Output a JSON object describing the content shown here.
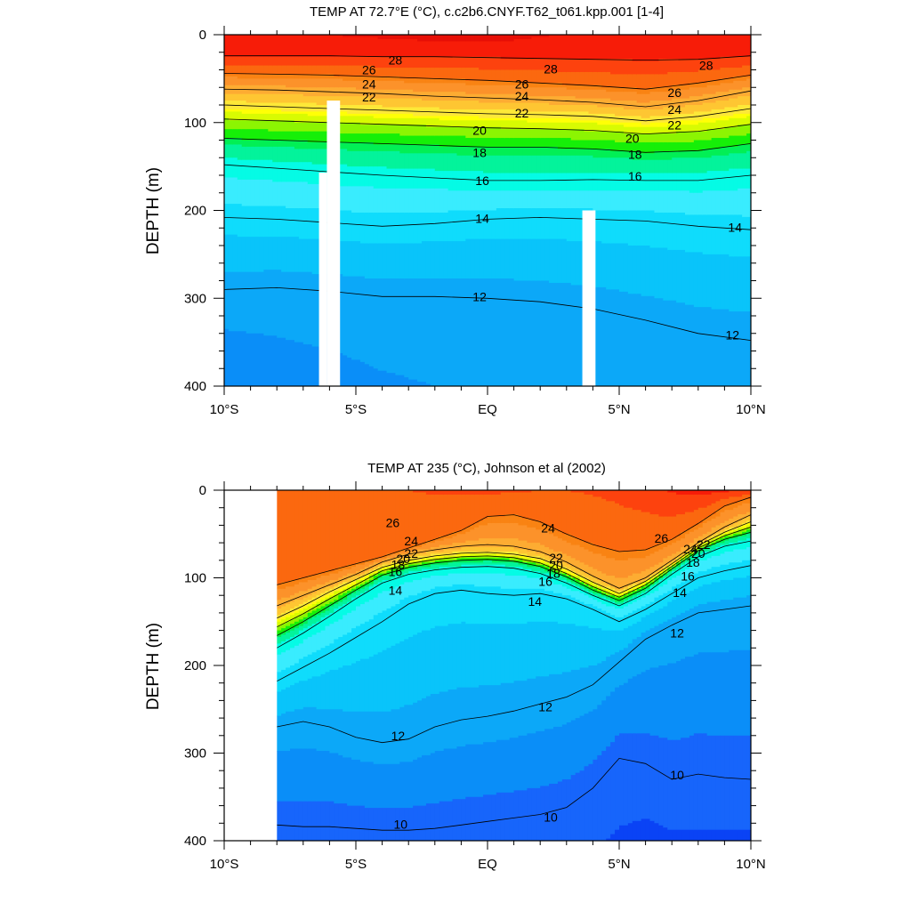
{
  "chart_data": [
    {
      "type": "contour",
      "title": "TEMP AT  72.7°E (°C), c.c2b6.CNYF.T62_t061.kpp.001 [1-4]",
      "ylabel": "DEPTH (m)",
      "xlabel": "",
      "x_ticks": [
        "10°S",
        "5°S",
        "EQ",
        "5°N",
        "10°N"
      ],
      "x_tick_values": [
        -10,
        -5,
        0,
        5,
        10
      ],
      "y_ticks": [
        "0",
        "100",
        "200",
        "300",
        "400"
      ],
      "y_tick_values": [
        0,
        100,
        200,
        300,
        400
      ],
      "xlim": [
        -10,
        10
      ],
      "ylim": [
        0,
        400
      ],
      "y_inverted": true,
      "contour_interval": 0.5,
      "x": [
        -10,
        -8,
        -6,
        -4,
        -2,
        0,
        2,
        4,
        6,
        8,
        10
      ],
      "surface_temp": [
        28.6,
        28.8,
        29.0,
        29.2,
        29.4,
        29.5,
        29.1,
        28.8,
        28.6,
        28.7,
        28.8
      ],
      "isotherms": [
        {
          "temp": 28,
          "depth": [
            24,
            24,
            24,
            25,
            25,
            26,
            27,
            28,
            29,
            28,
            24
          ]
        },
        {
          "temp": 26,
          "depth": [
            44,
            45,
            46,
            48,
            50,
            52,
            55,
            58,
            62,
            55,
            46
          ]
        },
        {
          "temp": 24,
          "depth": [
            62,
            63,
            65,
            67,
            70,
            72,
            74,
            77,
            82,
            75,
            64
          ]
        },
        {
          "temp": 22,
          "depth": [
            80,
            82,
            84,
            86,
            88,
            90,
            91,
            93,
            98,
            93,
            84
          ]
        },
        {
          "temp": 20,
          "depth": [
            96,
            98,
            100,
            102,
            104,
            106,
            107,
            109,
            113,
            110,
            102
          ]
        },
        {
          "temp": 18,
          "depth": [
            118,
            120,
            122,
            124,
            126,
            128,
            128,
            130,
            134,
            132,
            124
          ]
        },
        {
          "temp": 16,
          "depth": [
            148,
            152,
            156,
            160,
            163,
            166,
            166,
            165,
            166,
            166,
            160
          ]
        },
        {
          "temp": 14,
          "depth": [
            208,
            210,
            214,
            218,
            215,
            210,
            208,
            210,
            212,
            218,
            222
          ]
        },
        {
          "temp": 12,
          "depth": [
            290,
            288,
            292,
            298,
            298,
            300,
            304,
            312,
            325,
            340,
            348
          ]
        }
      ],
      "deep_temp_at_400": [
        10.8,
        11.0,
        11.2,
        11.4,
        11.5,
        11.5,
        11.5,
        11.5,
        11.6,
        11.7,
        11.8
      ],
      "no_data_columns": [
        {
          "x_min": -6.4,
          "x_max": -6.1,
          "top_depth": 157
        },
        {
          "x_min": -6.1,
          "x_max": -5.6,
          "top_depth": 75
        },
        {
          "x_min": 3.6,
          "x_max": 4.1,
          "top_depth": 200
        }
      ],
      "contour_labels": [
        {
          "text": "28",
          "x": -3.5,
          "depth": 29
        },
        {
          "text": "26",
          "x": -4.5,
          "depth": 40
        },
        {
          "text": "24",
          "x": -4.5,
          "depth": 56
        },
        {
          "text": "22",
          "x": -4.5,
          "depth": 71
        },
        {
          "text": "28",
          "x": 2.4,
          "depth": 39
        },
        {
          "text": "26",
          "x": 1.3,
          "depth": 56
        },
        {
          "text": "24",
          "x": 1.3,
          "depth": 70
        },
        {
          "text": "22",
          "x": 1.3,
          "depth": 89
        },
        {
          "text": "20",
          "x": -0.3,
          "depth": 109
        },
        {
          "text": "18",
          "x": -0.3,
          "depth": 134
        },
        {
          "text": "16",
          "x": -0.2,
          "depth": 166
        },
        {
          "text": "14",
          "x": -0.2,
          "depth": 209
        },
        {
          "text": "12",
          "x": -0.3,
          "depth": 298
        },
        {
          "text": "28",
          "x": 8.3,
          "depth": 35
        },
        {
          "text": "26",
          "x": 7.1,
          "depth": 66
        },
        {
          "text": "24",
          "x": 7.1,
          "depth": 85
        },
        {
          "text": "22",
          "x": 7.1,
          "depth": 103
        },
        {
          "text": "20",
          "x": 5.5,
          "depth": 118
        },
        {
          "text": "18",
          "x": 5.6,
          "depth": 136
        },
        {
          "text": "16",
          "x": 5.6,
          "depth": 161
        },
        {
          "text": "14",
          "x": 9.4,
          "depth": 219
        },
        {
          "text": "12",
          "x": 9.3,
          "depth": 342
        }
      ]
    },
    {
      "type": "contour",
      "title": "TEMP AT 235 (°C), Johnson et al (2002)",
      "ylabel": "DEPTH (m)",
      "xlabel": "",
      "x_ticks": [
        "10°S",
        "5°S",
        "EQ",
        "5°N",
        "10°N"
      ],
      "x_tick_values": [
        -10,
        -5,
        0,
        5,
        10
      ],
      "y_ticks": [
        "0",
        "100",
        "200",
        "300",
        "400"
      ],
      "y_tick_values": [
        0,
        100,
        200,
        300,
        400
      ],
      "xlim": [
        -10,
        10
      ],
      "ylim": [
        0,
        400
      ],
      "y_inverted": true,
      "data_xlim": [
        -8,
        10
      ],
      "contour_interval": 0.5,
      "x": [
        -8,
        -7,
        -6,
        -5,
        -4,
        -3,
        -2,
        -1,
        0,
        1,
        2,
        3,
        4,
        5,
        6,
        7,
        8,
        9,
        10
      ],
      "surface_temp": [
        26.6,
        26.7,
        26.8,
        26.9,
        27.0,
        27.0,
        27.1,
        27.1,
        27.2,
        27.1,
        27.0,
        27.0,
        27.1,
        27.3,
        27.6,
        28.1,
        28.4,
        28.2,
        28.0
      ],
      "isotherms": [
        {
          "temp": 26,
          "depth": [
            108,
            100,
            92,
            84,
            76,
            66,
            56,
            46,
            30,
            28,
            36,
            50,
            62,
            70,
            68,
            56,
            38,
            18,
            8
          ]
        },
        {
          "temp": 24,
          "depth": [
            132,
            120,
            108,
            96,
            82,
            73,
            68,
            64,
            62,
            64,
            70,
            82,
            98,
            112,
            100,
            80,
            60,
            42,
            28
          ]
        },
        {
          "temp": 22,
          "depth": [
            146,
            132,
            116,
            102,
            88,
            80,
            75,
            72,
            71,
            73,
            78,
            90,
            105,
            118,
            104,
            84,
            63,
            48,
            36
          ]
        },
        {
          "temp": 20,
          "depth": [
            156,
            141,
            124,
            108,
            92,
            84,
            79,
            76,
            75,
            77,
            83,
            95,
            110,
            122,
            108,
            87,
            66,
            52,
            42
          ]
        },
        {
          "temp": 18,
          "depth": [
            166,
            150,
            132,
            114,
            97,
            88,
            83,
            80,
            79,
            81,
            87,
            99,
            114,
            126,
            112,
            90,
            69,
            56,
            48
          ]
        },
        {
          "temp": 16,
          "depth": [
            180,
            163,
            144,
            124,
            106,
            96,
            91,
            88,
            87,
            89,
            95,
            106,
            120,
            132,
            118,
            96,
            76,
            64,
            58
          ]
        },
        {
          "temp": 14,
          "depth": [
            218,
            202,
            186,
            168,
            150,
            130,
            118,
            114,
            118,
            120,
            118,
            124,
            136,
            150,
            136,
            118,
            100,
            92,
            86
          ]
        },
        {
          "temp": 12,
          "depth": [
            270,
            264,
            270,
            282,
            288,
            284,
            270,
            262,
            258,
            252,
            244,
            236,
            222,
            196,
            170,
            154,
            140,
            136,
            132
          ]
        },
        {
          "temp": 10,
          "depth": [
            382,
            384,
            384,
            386,
            388,
            388,
            386,
            382,
            378,
            374,
            370,
            362,
            340,
            306,
            312,
            330,
            324,
            328,
            330
          ]
        }
      ],
      "deep_temp_at_400": [
        9.7,
        9.7,
        9.7,
        9.7,
        9.7,
        9.7,
        9.7,
        9.7,
        9.7,
        9.7,
        9.7,
        9.7,
        9.6,
        9.4,
        9.3,
        9.4,
        9.4,
        9.4,
        9.4
      ],
      "contour_labels": [
        {
          "text": "26",
          "x": -3.6,
          "depth": 37
        },
        {
          "text": "24",
          "x": -2.9,
          "depth": 58
        },
        {
          "text": "22",
          "x": -2.9,
          "depth": 72
        },
        {
          "text": "20",
          "x": -3.2,
          "depth": 78
        },
        {
          "text": "18",
          "x": -3.4,
          "depth": 85
        },
        {
          "text": "16",
          "x": -3.5,
          "depth": 93
        },
        {
          "text": "14",
          "x": -3.5,
          "depth": 114
        },
        {
          "text": "24",
          "x": 2.3,
          "depth": 43
        },
        {
          "text": "22",
          "x": 2.6,
          "depth": 77
        },
        {
          "text": "20",
          "x": 2.6,
          "depth": 86
        },
        {
          "text": "18",
          "x": 2.5,
          "depth": 95
        },
        {
          "text": "16",
          "x": 2.2,
          "depth": 104
        },
        {
          "text": "14",
          "x": 1.8,
          "depth": 127
        },
        {
          "text": "26",
          "x": 6.6,
          "depth": 55
        },
        {
          "text": "24",
          "x": 7.7,
          "depth": 67
        },
        {
          "text": "22",
          "x": 8.2,
          "depth": 62
        },
        {
          "text": "20",
          "x": 8.0,
          "depth": 72
        },
        {
          "text": "18",
          "x": 7.8,
          "depth": 82
        },
        {
          "text": "16",
          "x": 7.6,
          "depth": 98
        },
        {
          "text": "14",
          "x": 7.3,
          "depth": 117
        },
        {
          "text": "12",
          "x": 7.2,
          "depth": 163
        },
        {
          "text": "12",
          "x": -3.4,
          "depth": 280
        },
        {
          "text": "12",
          "x": 2.2,
          "depth": 247
        },
        {
          "text": "10",
          "x": -3.3,
          "depth": 381
        },
        {
          "text": "10",
          "x": 2.4,
          "depth": 373
        },
        {
          "text": "10",
          "x": 7.2,
          "depth": 325
        }
      ]
    }
  ],
  "colors": {
    "palette": [
      "#0a43f5",
      "#1765fb",
      "#0a8ef8",
      "#0ca8f8",
      "#09c4fa",
      "#0fdcfc",
      "#39ecfe",
      "#05fbe5",
      "#03f39b",
      "#02ef55",
      "#16ef08",
      "#8cf502",
      "#d8fb02",
      "#ffff06",
      "#fde838",
      "#fec632",
      "#fdac32",
      "#fc922a",
      "#f98313",
      "#fb680f",
      "#fd420e",
      "#f71c08",
      "#e70f06"
    ],
    "thresholds": [
      9.5,
      10,
      10.5,
      11,
      11.5,
      12,
      12.5,
      13.5,
      14,
      14.5,
      15,
      15.5,
      16,
      16.5,
      17,
      17.5,
      18,
      18.5,
      19,
      19.5,
      20,
      20.5,
      21,
      21.5,
      22,
      22.5,
      23,
      23.5,
      24,
      24.5,
      25,
      25.5,
      26,
      26.5,
      27,
      27.5,
      28,
      28.5,
      29
    ],
    "contour_line": "#000000",
    "missing": "#ffffff"
  }
}
